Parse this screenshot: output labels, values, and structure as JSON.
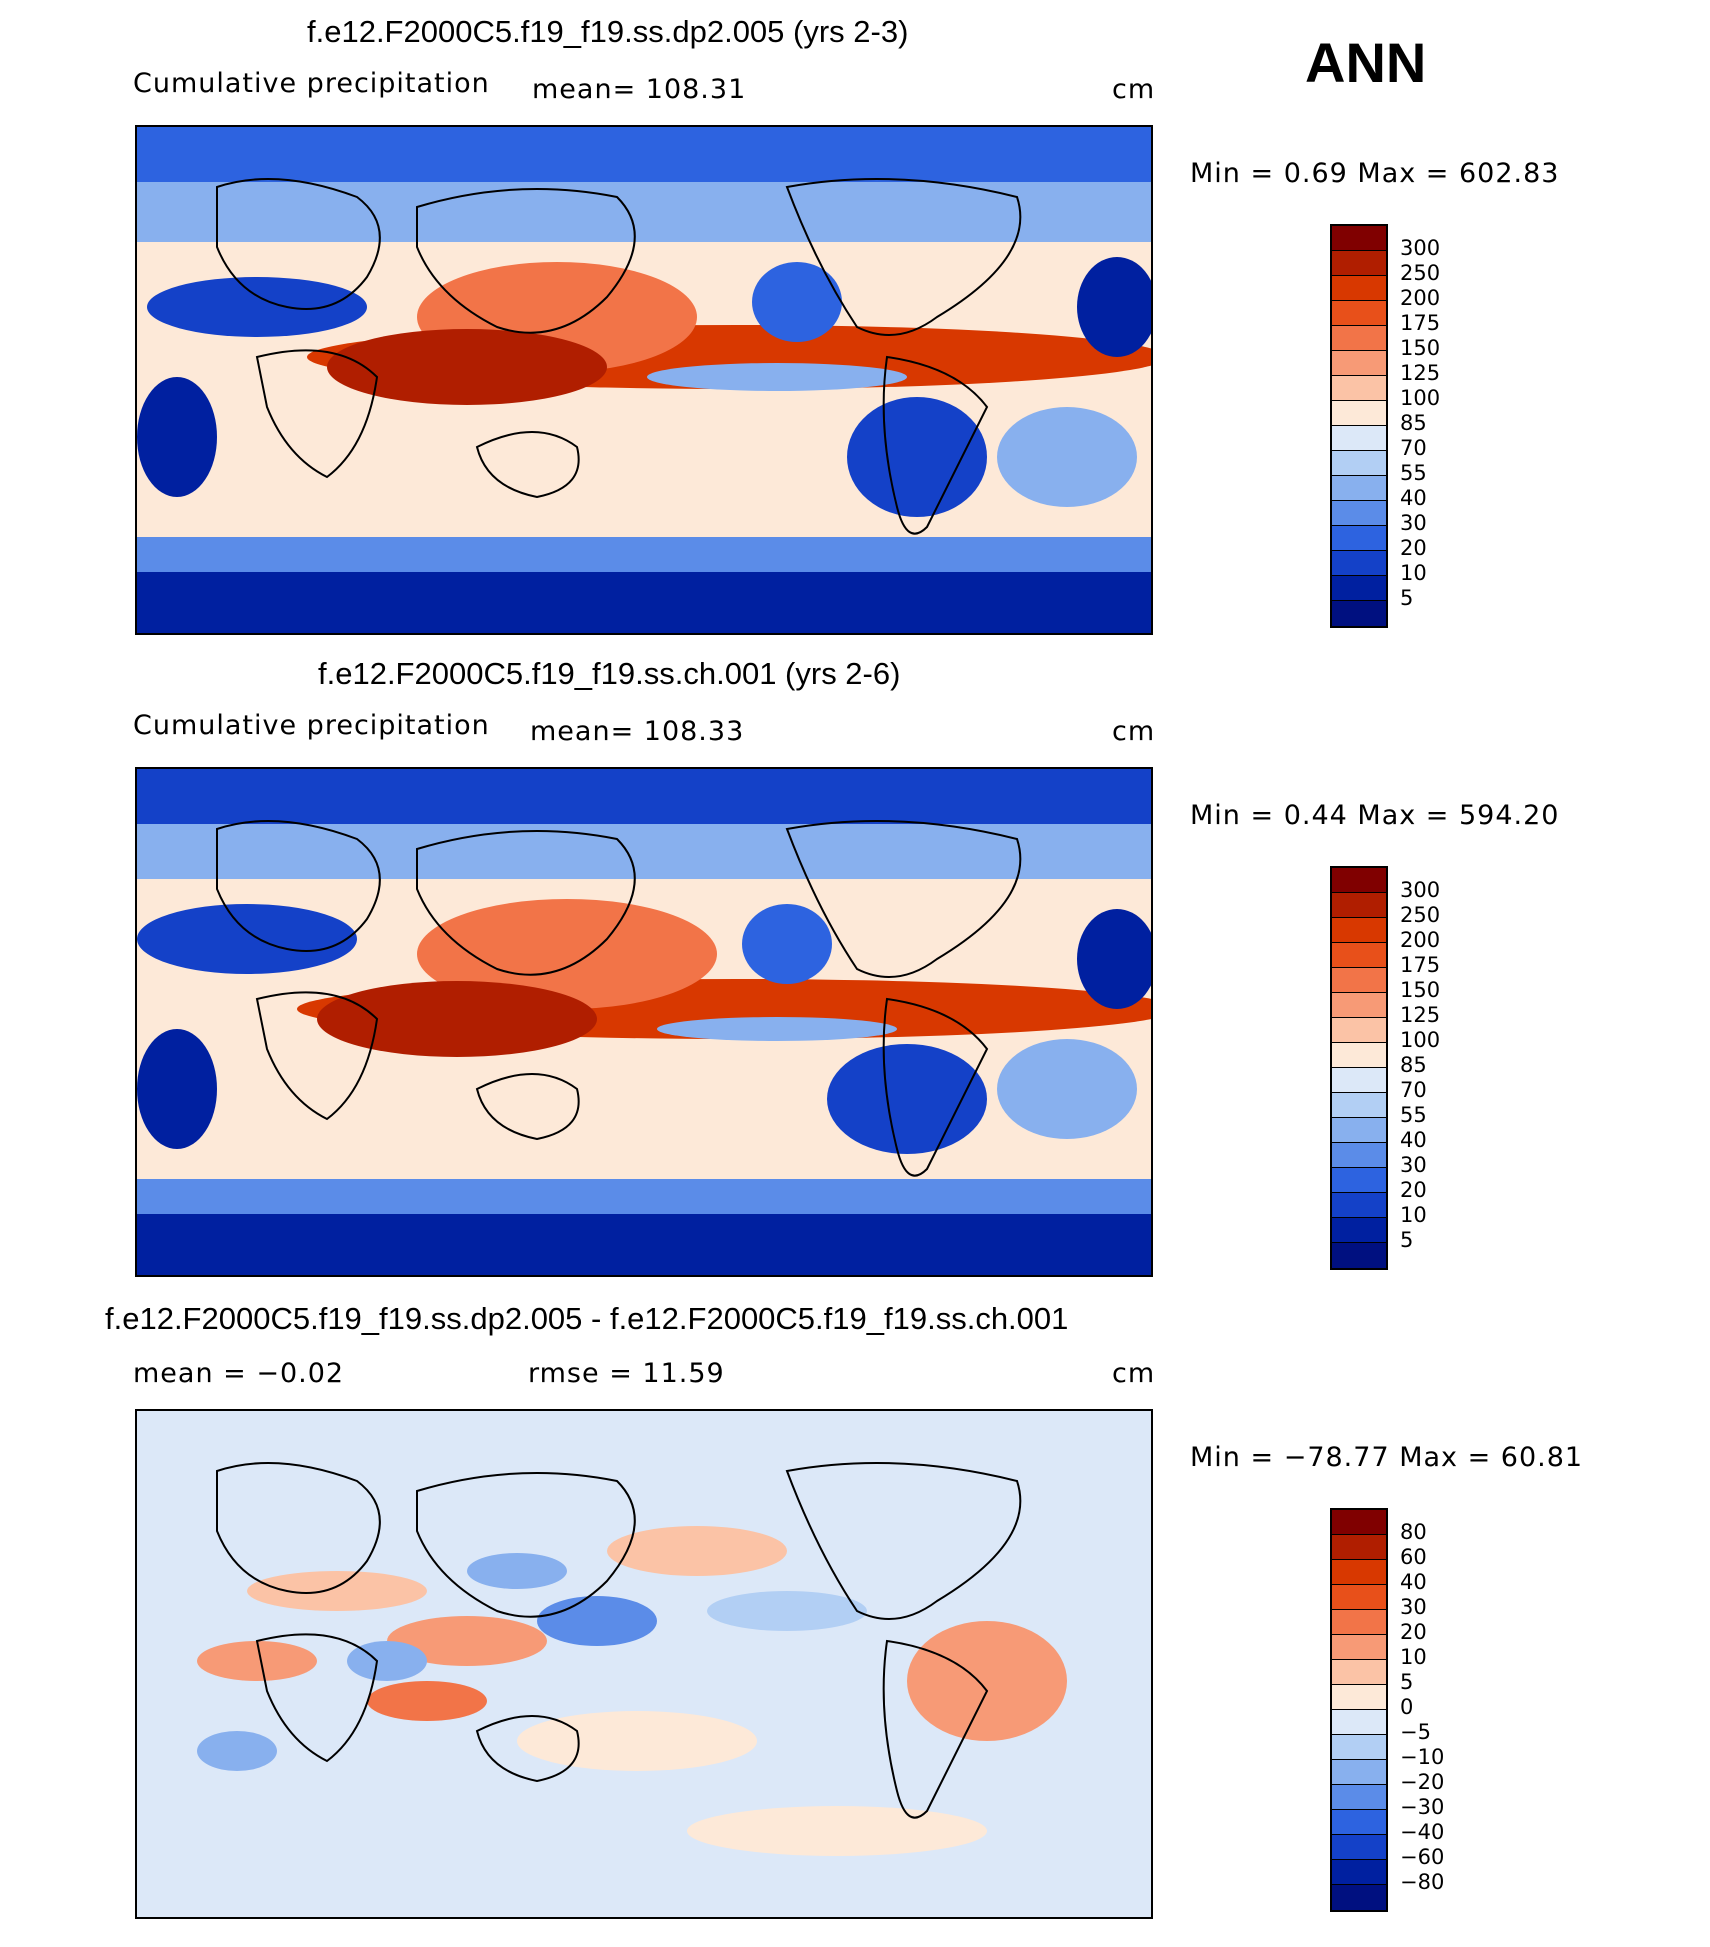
{
  "season": "ANN",
  "panels": [
    {
      "title": "f.e12.F2000C5.f19_f19.ss.dp2.005 (yrs 2-3)",
      "left_label": "Cumulative precipitation",
      "center_label": "mean=  108.31",
      "right_label": "cm",
      "minmax": "Min =    0.69  Max =  602.83",
      "levels": [
        "300",
        "250",
        "200",
        "175",
        "150",
        "125",
        "100",
        "85",
        "70",
        "55",
        "40",
        "30",
        "20",
        "10",
        "5"
      ],
      "colors": [
        "#800000",
        "#b01e00",
        "#d83800",
        "#e8501a",
        "#f27448",
        "#f79a76",
        "#fbc3a6",
        "#fde9d8",
        "#dce8f8",
        "#b2cff4",
        "#88b0ee",
        "#5b8ce8",
        "#2d63e0",
        "#1441c8",
        "#0020a0",
        "#001080"
      ]
    },
    {
      "title": "f.e12.F2000C5.f19_f19.ss.ch.001 (yrs 2-6)",
      "left_label": "Cumulative precipitation",
      "center_label": "mean=  108.33",
      "right_label": "cm",
      "minmax": "Min =    0.44  Max =  594.20",
      "levels": [
        "300",
        "250",
        "200",
        "175",
        "150",
        "125",
        "100",
        "85",
        "70",
        "55",
        "40",
        "30",
        "20",
        "10",
        "5"
      ],
      "colors": [
        "#800000",
        "#b01e00",
        "#d83800",
        "#e8501a",
        "#f27448",
        "#f79a76",
        "#fbc3a6",
        "#fde9d8",
        "#dce8f8",
        "#b2cff4",
        "#88b0ee",
        "#5b8ce8",
        "#2d63e0",
        "#1441c8",
        "#0020a0",
        "#001080"
      ]
    },
    {
      "title": "f.e12.F2000C5.f19_f19.ss.dp2.005 - f.e12.F2000C5.f19_f19.ss.ch.001",
      "left_label": "mean =   −0.02",
      "center_label": "rmse =   11.59",
      "right_label": "cm",
      "minmax": "Min = −78.77  Max =   60.81",
      "levels": [
        "80",
        "60",
        "40",
        "30",
        "20",
        "10",
        "5",
        "0",
        "−5",
        "−10",
        "−20",
        "−30",
        "−40",
        "−60",
        "−80"
      ],
      "colors": [
        "#800000",
        "#b01e00",
        "#d83800",
        "#e8501a",
        "#f27448",
        "#f79a76",
        "#fbc3a6",
        "#fde9d8",
        "#dce8f8",
        "#b2cff4",
        "#88b0ee",
        "#5b8ce8",
        "#2d63e0",
        "#1441c8",
        "#0020a0",
        "#001080"
      ]
    }
  ]
}
